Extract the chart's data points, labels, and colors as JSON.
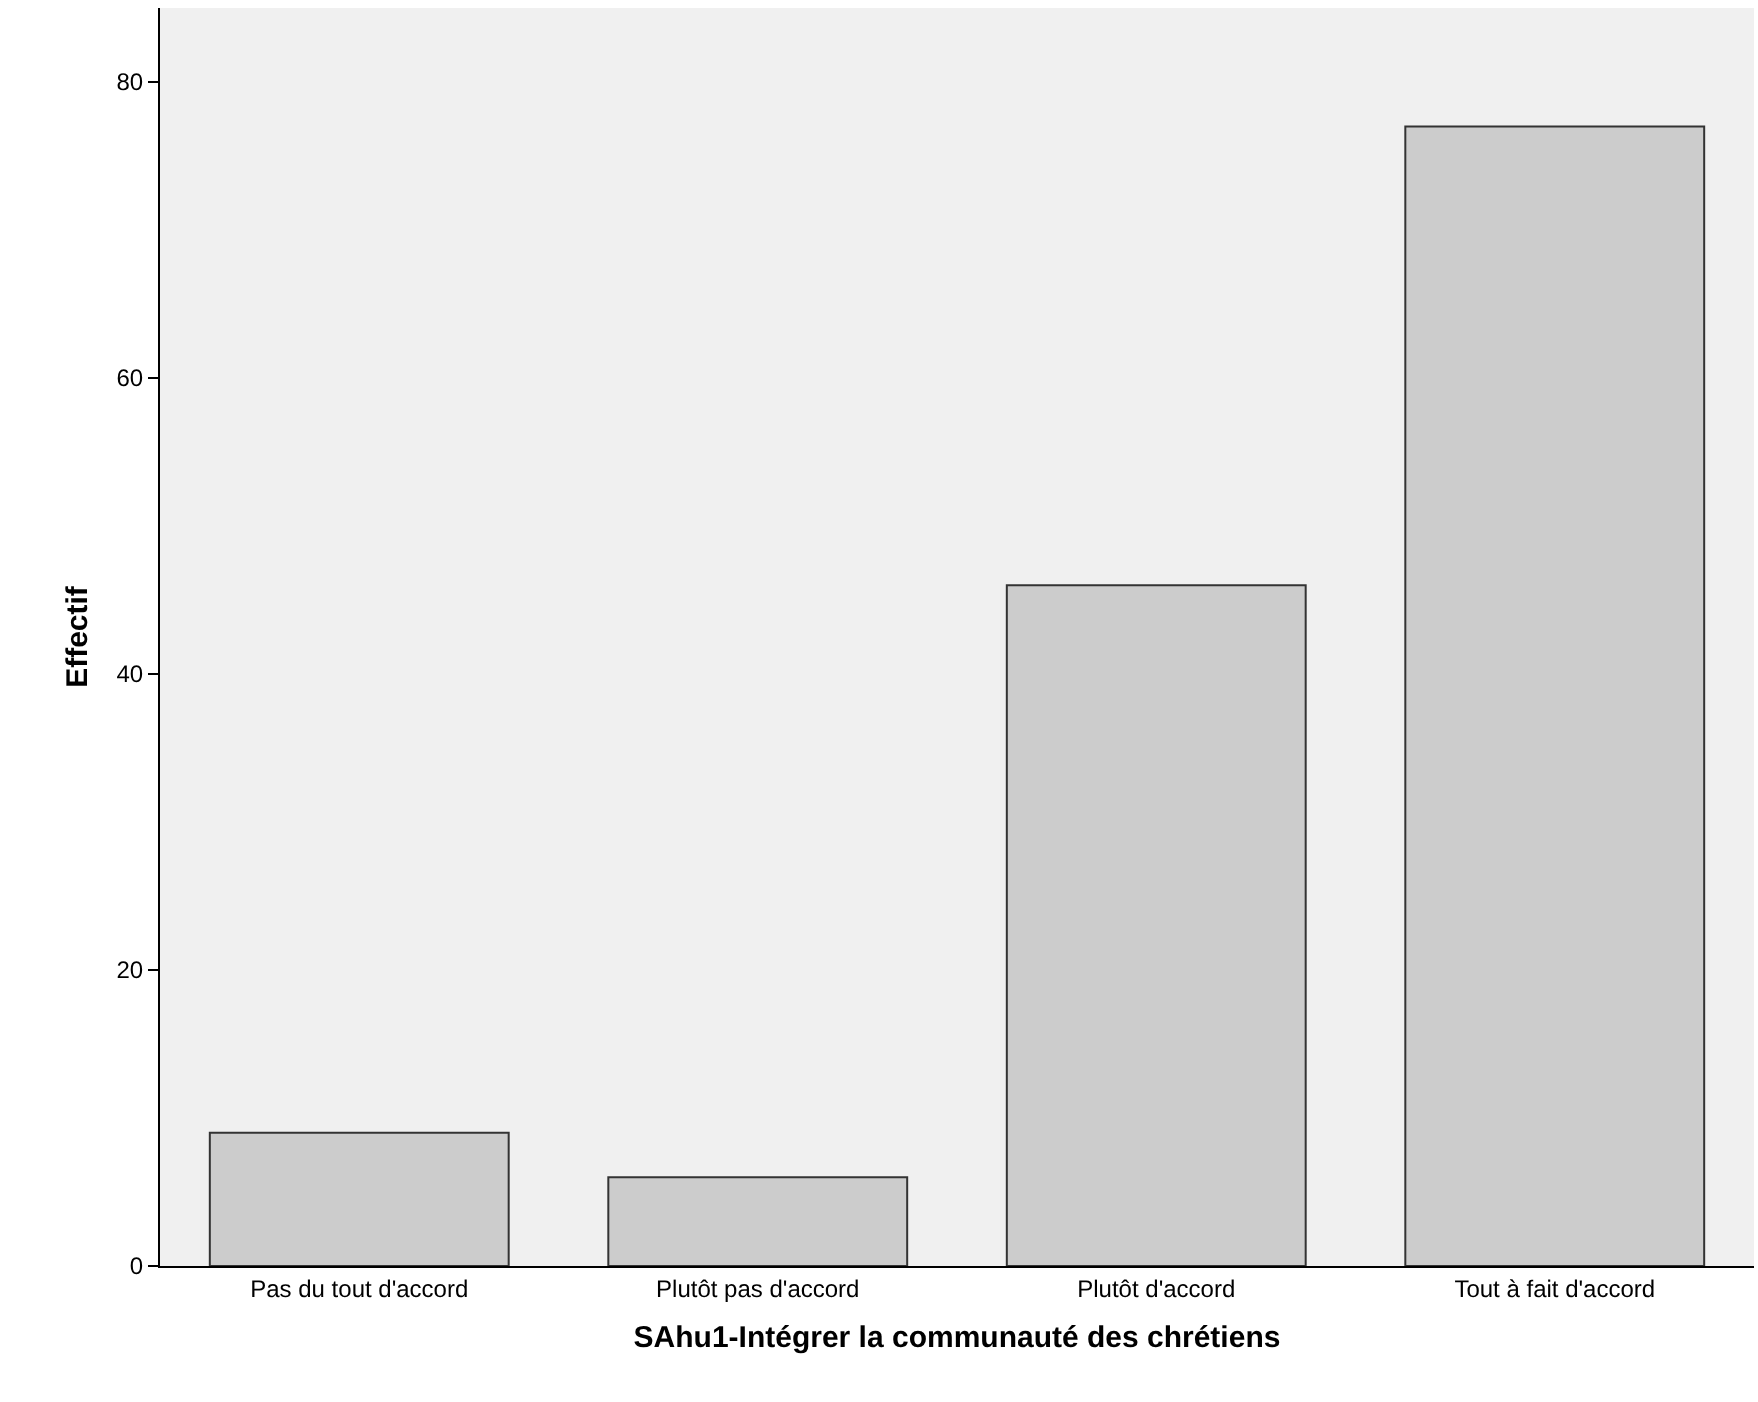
{
  "chart_data": {
    "type": "bar",
    "xlabel": "SAhu1-Intégrer la communauté des chrétiens",
    "ylabel": "Effectif",
    "categories": [
      "Pas du tout d'accord",
      "Plutôt pas d'accord",
      "Plutôt d'accord",
      "Tout à fait d'accord"
    ],
    "values": [
      9,
      6,
      46,
      77
    ],
    "color": "#cccccc",
    "ylim": [
      0,
      85
    ],
    "yticks": [
      0,
      20,
      40,
      60,
      80
    ],
    "grid": false,
    "legend": false
  }
}
